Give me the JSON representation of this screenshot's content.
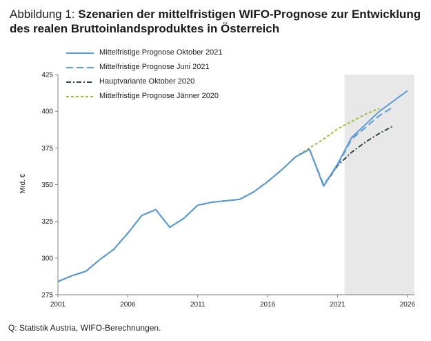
{
  "title": {
    "prefix": "Abbildung 1: ",
    "main": "Szenarien der mittelfristigen WIFO-Prognose zur Entwicklung des realen Bruttoinlandsproduktes in Österreich"
  },
  "source": "Q: Statistik Austria, WIFO-Berechnungen.",
  "colors": {
    "okt2021": "#5b9bd5",
    "juni2021": "#5b9bd5",
    "haupt2020": "#2e4a3e",
    "jaenner2020": "#9bbb3b",
    "forecast_shade": "#e8e8e8"
  },
  "chart_data": {
    "type": "line",
    "xlabel": "",
    "ylabel": "Mrd. €",
    "xlim": [
      2001,
      2026.5
    ],
    "ylim": [
      275,
      425
    ],
    "xticks": [
      2001,
      2006,
      2011,
      2016,
      2021,
      2026
    ],
    "yticks": [
      275,
      300,
      325,
      350,
      375,
      400,
      425
    ],
    "shaded_region": [
      2021.5,
      2026.5
    ],
    "legend_position": "top-left",
    "series": [
      {
        "name": "Mittelfristige Prognose Oktober 2021",
        "style": "solid",
        "color": "#5b9bd5",
        "x": [
          2001,
          2002,
          2003,
          2004,
          2005,
          2006,
          2007,
          2008,
          2009,
          2010,
          2011,
          2012,
          2013,
          2014,
          2015,
          2016,
          2017,
          2018,
          2019,
          2020,
          2021,
          2022,
          2023,
          2024,
          2025,
          2026
        ],
        "y": [
          284,
          288,
          291,
          299,
          306,
          317,
          329,
          333,
          321,
          327,
          336,
          338,
          339,
          340,
          345,
          352,
          360,
          369,
          374,
          349,
          364,
          382,
          391,
          400,
          407,
          414
        ]
      },
      {
        "name": "Mittelfristige Prognose Juni 2021",
        "style": "longdash",
        "color": "#5b9bd5",
        "x": [
          2019,
          2020,
          2021,
          2022,
          2023,
          2024,
          2025
        ],
        "y": [
          374,
          350,
          363,
          381,
          389,
          397,
          403
        ]
      },
      {
        "name": "Hauptvariante Oktober 2020",
        "style": "dashdot",
        "color": "#2e4a3e",
        "x": [
          2001,
          2002,
          2003,
          2004,
          2005,
          2006,
          2007,
          2008,
          2009,
          2010,
          2011,
          2012,
          2013,
          2014,
          2015,
          2016,
          2017,
          2018,
          2019,
          2020,
          2021,
          2022,
          2023,
          2024,
          2025
        ],
        "y": [
          284,
          288,
          291,
          299,
          306,
          317,
          329,
          333,
          321,
          327,
          336,
          338,
          339,
          340,
          345,
          352,
          360,
          369,
          374,
          349,
          363,
          372,
          379,
          385,
          390
        ]
      },
      {
        "name": "Mittelfristige Prognose Jänner 2020",
        "style": "shortdash",
        "color": "#9bbb3b",
        "x": [
          2001,
          2002,
          2003,
          2004,
          2005,
          2006,
          2007,
          2008,
          2009,
          2010,
          2011,
          2012,
          2013,
          2014,
          2015,
          2016,
          2017,
          2018,
          2019,
          2020,
          2021,
          2022,
          2023,
          2024
        ],
        "y": [
          284,
          288,
          291,
          299,
          306,
          317,
          329,
          333,
          321,
          327,
          336,
          338,
          339,
          340,
          345,
          352,
          360,
          369,
          375,
          381,
          388,
          393,
          398,
          402
        ]
      }
    ]
  }
}
